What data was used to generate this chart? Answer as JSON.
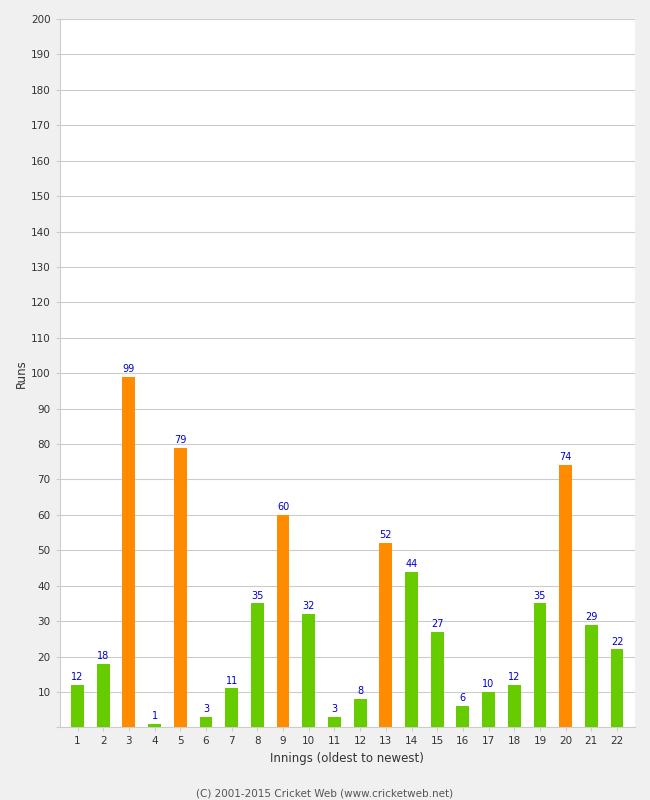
{
  "innings": [
    1,
    2,
    3,
    4,
    5,
    6,
    7,
    8,
    9,
    10,
    11,
    12,
    13,
    14,
    15,
    16,
    17,
    18,
    19,
    20,
    21,
    22
  ],
  "values": [
    12,
    18,
    99,
    1,
    79,
    3,
    11,
    35,
    60,
    32,
    3,
    8,
    52,
    44,
    27,
    6,
    10,
    12,
    35,
    74,
    29,
    22
  ],
  "colors": [
    "#66cc00",
    "#66cc00",
    "#ff8c00",
    "#66cc00",
    "#ff8c00",
    "#66cc00",
    "#66cc00",
    "#66cc00",
    "#ff8c00",
    "#66cc00",
    "#66cc00",
    "#66cc00",
    "#ff8c00",
    "#66cc00",
    "#66cc00",
    "#66cc00",
    "#66cc00",
    "#66cc00",
    "#66cc00",
    "#ff8c00",
    "#66cc00",
    "#66cc00"
  ],
  "xlabel": "Innings (oldest to newest)",
  "ylabel": "Runs",
  "ylim": [
    0,
    200
  ],
  "yticks": [
    0,
    10,
    20,
    30,
    40,
    50,
    60,
    70,
    80,
    90,
    100,
    110,
    120,
    130,
    140,
    150,
    160,
    170,
    180,
    190,
    200
  ],
  "label_color": "#0000cc",
  "label_fontsize": 7,
  "axis_bg_color": "#ffffff",
  "fig_bg_color": "#f0f0f0",
  "grid_color": "#cccccc",
  "tick_color": "#333333",
  "footer": "(C) 2001-2015 Cricket Web (www.cricketweb.net)",
  "bar_width": 0.5
}
